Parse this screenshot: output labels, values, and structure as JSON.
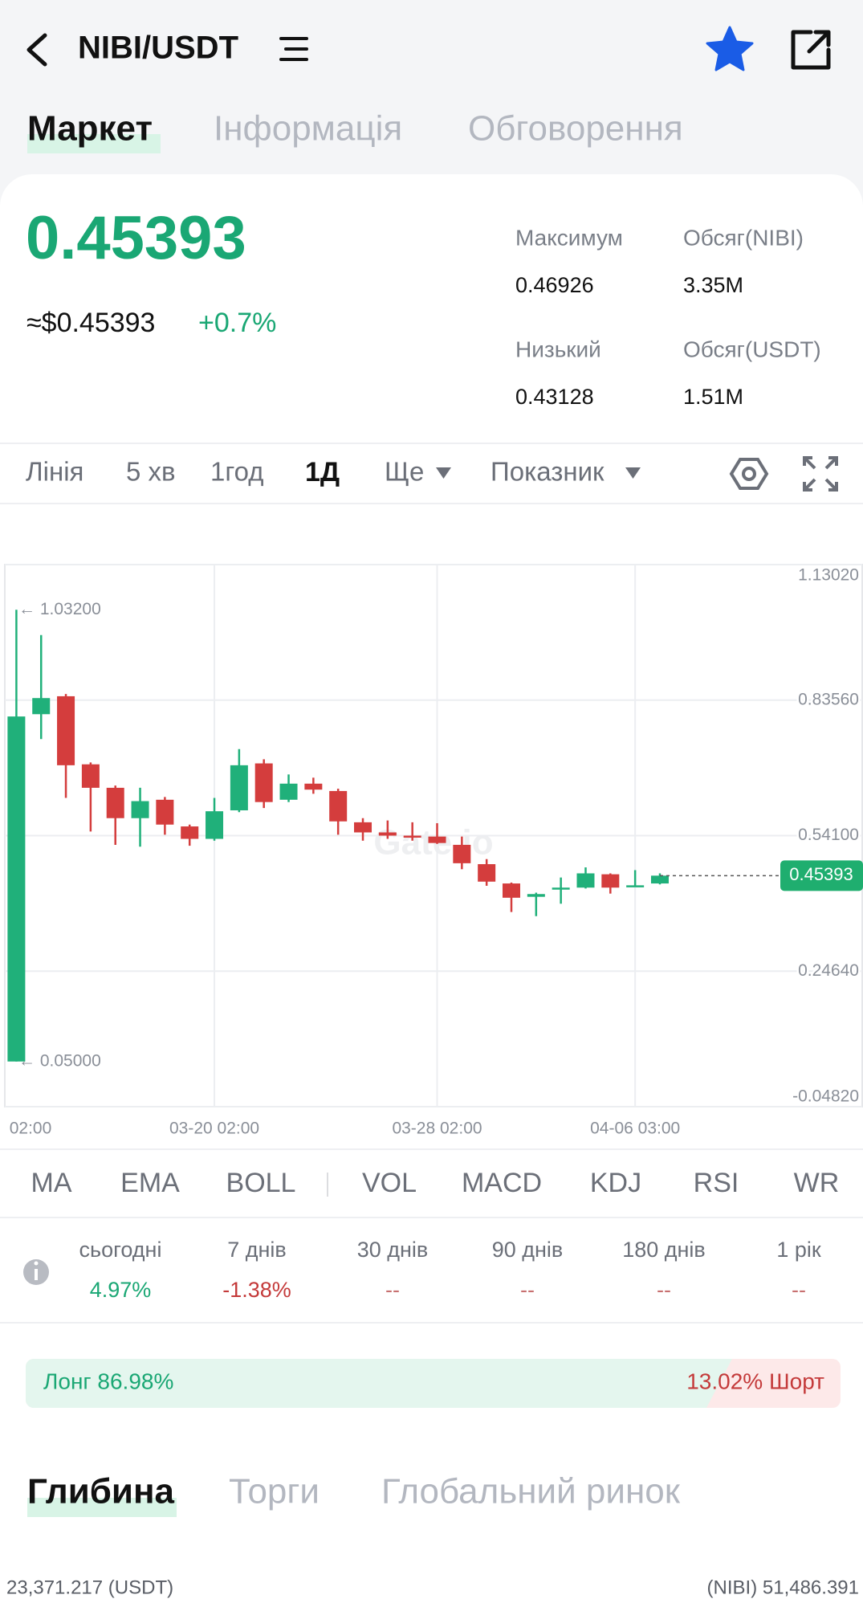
{
  "header": {
    "pair": "NIBI/USDT"
  },
  "tabs": [
    "Маркет",
    "Інформація",
    "Обговорення"
  ],
  "price": {
    "last": "0.45393",
    "usd": "≈$0.45393",
    "change": "+0.7%"
  },
  "stats": [
    {
      "label": "Максимум",
      "value": "0.46926"
    },
    {
      "label": "Обсяг(NIBI)",
      "value": "3.35M"
    },
    {
      "label": "Низький",
      "value": "0.43128"
    },
    {
      "label": "Обсяг(USDT)",
      "value": "1.51M"
    }
  ],
  "intervals": [
    "Лінія",
    "5 хв",
    "1год",
    "1Д",
    "Ще",
    "Показник"
  ],
  "chart_data": {
    "type": "candlestick",
    "categories": [
      "02:00",
      null,
      null,
      null,
      null,
      null,
      null,
      null,
      "03-20 02:00",
      null,
      null,
      null,
      null,
      null,
      null,
      null,
      null,
      "03-28 02:00",
      null,
      null,
      null,
      null,
      null,
      null,
      null,
      "04-06 03:00",
      null
    ],
    "open": [
      0.05,
      0.805,
      0.844,
      0.696,
      0.645,
      0.579,
      0.619,
      0.561,
      0.534,
      0.596,
      0.698,
      0.619,
      0.654,
      0.638,
      0.57,
      0.548,
      0.541,
      0.539,
      0.521,
      0.479,
      0.437,
      0.408,
      0.424,
      0.428,
      0.457,
      0.431,
      0.437
    ],
    "high": [
      1.032,
      0.977,
      0.849,
      0.7,
      0.65,
      0.645,
      0.625,
      0.565,
      0.623,
      0.729,
      0.707,
      0.674,
      0.667,
      0.643,
      0.579,
      0.574,
      0.57,
      0.568,
      0.539,
      0.49,
      0.439,
      0.417,
      0.45,
      0.472,
      0.459,
      0.466,
      0.459
    ],
    "low": [
      0.05,
      0.751,
      0.623,
      0.55,
      0.521,
      0.517,
      0.543,
      0.519,
      0.53,
      0.592,
      0.601,
      0.614,
      0.632,
      0.543,
      0.53,
      0.534,
      0.53,
      0.523,
      0.468,
      0.432,
      0.375,
      0.366,
      0.393,
      0.426,
      0.415,
      0.431,
      0.435
    ],
    "close": [
      0.8,
      0.84,
      0.694,
      0.645,
      0.579,
      0.616,
      0.565,
      0.534,
      0.594,
      0.694,
      0.614,
      0.654,
      0.641,
      0.572,
      0.548,
      0.541,
      0.539,
      0.525,
      0.481,
      0.441,
      0.406,
      0.414,
      0.428,
      0.459,
      0.428,
      0.433,
      0.454
    ],
    "up_color": "#20b07a",
    "down_color": "#d43d3d",
    "ylim": [
      -0.0482,
      1.1302
    ],
    "yticks": [
      {
        "value": -0.0482,
        "label": "-0.04820"
      },
      {
        "value": 0.2464,
        "label": "0.24640"
      },
      {
        "value": 0.541,
        "label": "0.54100"
      },
      {
        "value": 0.8356,
        "label": "0.83560"
      },
      {
        "value": 1.1302,
        "label": "1.13020"
      }
    ],
    "grid": true,
    "annotations": [
      {
        "value": 1.032,
        "label": "← 1.03200"
      },
      {
        "value": 0.05,
        "label": "← 0.05000"
      }
    ],
    "last_price": {
      "value": 0.45393,
      "label": "0.45393"
    },
    "watermark": "Gate.io"
  },
  "indicators": [
    "MA",
    "EMA",
    "BOLL",
    "VOL",
    "MACD",
    "KDJ",
    "RSI",
    "WR"
  ],
  "performance": [
    {
      "label": "сьогодні",
      "value": "4.97%"
    },
    {
      "label": "7 днів",
      "value": "-1.38%"
    },
    {
      "label": "30 днів",
      "value": "--"
    },
    {
      "label": "90 днів",
      "value": "--"
    },
    {
      "label": "180 днів",
      "value": "--"
    },
    {
      "label": "1 рік",
      "value": "--"
    }
  ],
  "sentiment": {
    "long": "Лонг 86.98%",
    "short": "13.02% Шорт"
  },
  "depth_tabs": [
    "Глибина",
    "Торги",
    "Глобальний ринок"
  ],
  "depth": {
    "buy": "23,371.217 (USDT)",
    "sell": "(NIBI) 51,486.391"
  }
}
